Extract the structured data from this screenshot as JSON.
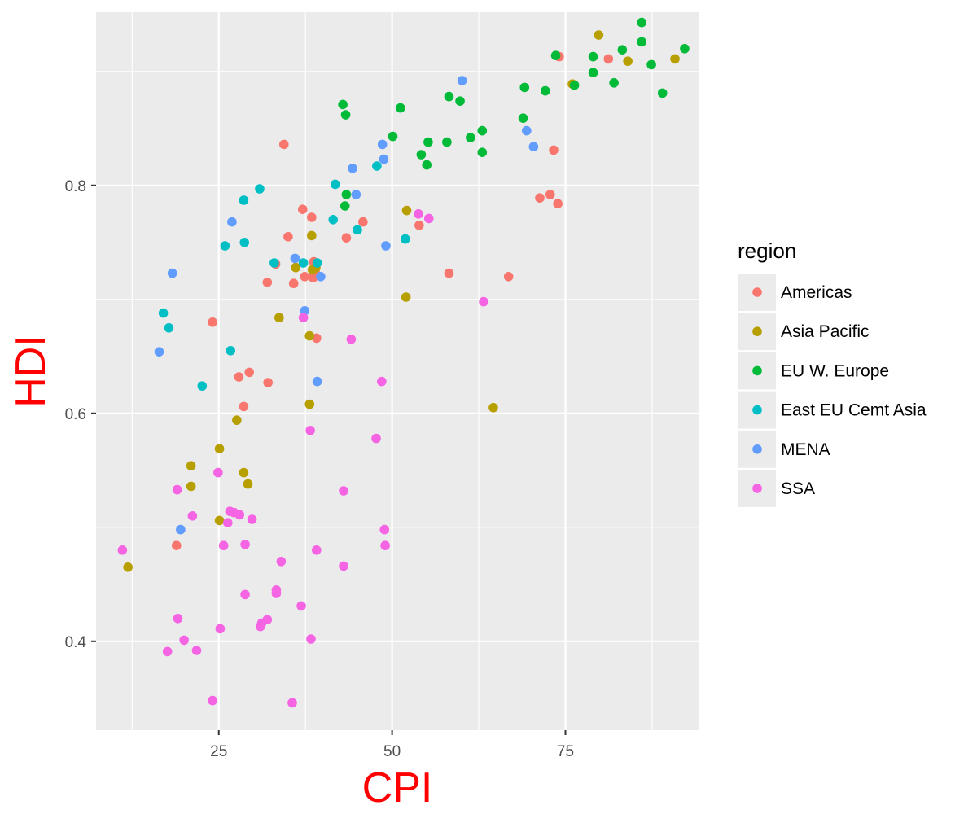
{
  "chart_data": {
    "type": "scatter",
    "xlabel": "CPI",
    "ylabel": "HDI",
    "xlim": [
      7.3,
      94.2
    ],
    "ylim": [
      0.322,
      0.952
    ],
    "x_ticks": [
      25,
      50,
      75
    ],
    "x_tick_labels": [
      "25",
      "50",
      "75"
    ],
    "y_ticks": [
      0.4,
      0.6,
      0.8
    ],
    "y_tick_labels": [
      "0.4",
      "0.6",
      "0.8"
    ],
    "grid": true,
    "legend": {
      "title": "region",
      "position": "right"
    },
    "colors": {
      "panel": "#EBEBEB",
      "grid": "#FFFFFF",
      "axis_title": "#FF0000",
      "tick_text": "#4D4D4D"
    },
    "series": [
      {
        "name": "Americas",
        "color": "#F8766D",
        "points": [
          [
            34.4,
            0.836
          ],
          [
            74.1,
            0.913
          ],
          [
            81.2,
            0.911
          ],
          [
            73.3,
            0.831
          ],
          [
            71.3,
            0.789
          ],
          [
            72.8,
            0.792
          ],
          [
            73.9,
            0.784
          ],
          [
            66.8,
            0.72
          ],
          [
            58.2,
            0.723
          ],
          [
            53.9,
            0.765
          ],
          [
            45.8,
            0.768
          ],
          [
            43.4,
            0.754
          ],
          [
            38.4,
            0.772
          ],
          [
            37.1,
            0.779
          ],
          [
            35.0,
            0.755
          ],
          [
            33.2,
            0.731
          ],
          [
            32.0,
            0.715
          ],
          [
            35.8,
            0.714
          ],
          [
            37.4,
            0.72
          ],
          [
            38.6,
            0.719
          ],
          [
            38.7,
            0.733
          ],
          [
            38.9,
            0.724
          ],
          [
            39.1,
            0.666
          ],
          [
            24.1,
            0.68
          ],
          [
            29.4,
            0.636
          ],
          [
            27.9,
            0.632
          ],
          [
            32.1,
            0.627
          ],
          [
            28.6,
            0.606
          ],
          [
            18.9,
            0.484
          ]
        ]
      },
      {
        "name": "Asia Pacific",
        "color": "#B79F00",
        "points": [
          [
            79.8,
            0.932
          ],
          [
            90.8,
            0.911
          ],
          [
            84.0,
            0.909
          ],
          [
            76.0,
            0.889
          ],
          [
            52.1,
            0.778
          ],
          [
            52.0,
            0.702
          ],
          [
            38.4,
            0.756
          ],
          [
            36.1,
            0.728
          ],
          [
            39.0,
            0.728
          ],
          [
            38.5,
            0.726
          ],
          [
            33.7,
            0.684
          ],
          [
            38.1,
            0.668
          ],
          [
            38.1,
            0.608
          ],
          [
            64.6,
            0.605
          ],
          [
            27.6,
            0.594
          ],
          [
            25.1,
            0.569
          ],
          [
            21.0,
            0.554
          ],
          [
            21.0,
            0.536
          ],
          [
            28.6,
            0.548
          ],
          [
            29.2,
            0.538
          ],
          [
            25.1,
            0.506
          ],
          [
            11.9,
            0.465
          ]
        ]
      },
      {
        "name": "EU W. Europe",
        "color": "#00BA38",
        "points": [
          [
            86.0,
            0.943
          ],
          [
            86.0,
            0.926
          ],
          [
            92.2,
            0.92
          ],
          [
            83.2,
            0.919
          ],
          [
            73.6,
            0.914
          ],
          [
            79.0,
            0.913
          ],
          [
            87.4,
            0.906
          ],
          [
            79.0,
            0.899
          ],
          [
            82.0,
            0.89
          ],
          [
            76.3,
            0.888
          ],
          [
            69.1,
            0.886
          ],
          [
            72.1,
            0.883
          ],
          [
            89.0,
            0.881
          ],
          [
            58.2,
            0.878
          ],
          [
            59.8,
            0.874
          ],
          [
            42.9,
            0.871
          ],
          [
            51.2,
            0.868
          ],
          [
            43.3,
            0.862
          ],
          [
            68.9,
            0.859
          ],
          [
            63.0,
            0.848
          ],
          [
            50.1,
            0.843
          ],
          [
            61.3,
            0.842
          ],
          [
            55.2,
            0.838
          ],
          [
            57.9,
            0.838
          ],
          [
            54.2,
            0.827
          ],
          [
            63.0,
            0.829
          ],
          [
            55.0,
            0.818
          ],
          [
            43.4,
            0.792
          ],
          [
            43.2,
            0.782
          ]
        ]
      },
      {
        "name": "East EU Cemt Asia",
        "color": "#00BFC4",
        "points": [
          [
            30.9,
            0.797
          ],
          [
            41.8,
            0.801
          ],
          [
            47.8,
            0.817
          ],
          [
            28.6,
            0.787
          ],
          [
            41.5,
            0.77
          ],
          [
            45.0,
            0.761
          ],
          [
            51.9,
            0.753
          ],
          [
            28.7,
            0.75
          ],
          [
            25.9,
            0.747
          ],
          [
            33.0,
            0.732
          ],
          [
            37.2,
            0.732
          ],
          [
            39.2,
            0.732
          ],
          [
            17.0,
            0.688
          ],
          [
            17.8,
            0.675
          ],
          [
            26.7,
            0.655
          ],
          [
            22.6,
            0.624
          ]
        ]
      },
      {
        "name": "MENA",
        "color": "#619CFF",
        "points": [
          [
            60.1,
            0.892
          ],
          [
            48.6,
            0.836
          ],
          [
            69.4,
            0.848
          ],
          [
            70.4,
            0.834
          ],
          [
            48.8,
            0.823
          ],
          [
            44.3,
            0.815
          ],
          [
            44.8,
            0.792
          ],
          [
            26.9,
            0.768
          ],
          [
            49.1,
            0.747
          ],
          [
            36.0,
            0.736
          ],
          [
            39.7,
            0.72
          ],
          [
            18.3,
            0.723
          ],
          [
            37.4,
            0.69
          ],
          [
            16.4,
            0.654
          ],
          [
            39.2,
            0.628
          ],
          [
            19.5,
            0.498
          ]
        ]
      },
      {
        "name": "SSA",
        "color": "#F564E3",
        "points": [
          [
            53.8,
            0.775
          ],
          [
            55.3,
            0.771
          ],
          [
            63.2,
            0.698
          ],
          [
            37.2,
            0.684
          ],
          [
            44.1,
            0.665
          ],
          [
            48.5,
            0.628
          ],
          [
            38.2,
            0.585
          ],
          [
            47.7,
            0.578
          ],
          [
            24.9,
            0.548
          ],
          [
            19.0,
            0.533
          ],
          [
            43.0,
            0.532
          ],
          [
            21.2,
            0.51
          ],
          [
            26.6,
            0.514
          ],
          [
            27.2,
            0.513
          ],
          [
            28.0,
            0.511
          ],
          [
            29.8,
            0.507
          ],
          [
            26.3,
            0.504
          ],
          [
            48.9,
            0.498
          ],
          [
            11.1,
            0.48
          ],
          [
            25.7,
            0.484
          ],
          [
            28.8,
            0.485
          ],
          [
            49.0,
            0.484
          ],
          [
            39.1,
            0.48
          ],
          [
            34.0,
            0.47
          ],
          [
            43.0,
            0.466
          ],
          [
            33.3,
            0.445
          ],
          [
            33.3,
            0.442
          ],
          [
            28.8,
            0.441
          ],
          [
            36.9,
            0.431
          ],
          [
            19.1,
            0.42
          ],
          [
            32.0,
            0.419
          ],
          [
            31.2,
            0.416
          ],
          [
            31.0,
            0.413
          ],
          [
            25.2,
            0.411
          ],
          [
            20.0,
            0.401
          ],
          [
            38.3,
            0.402
          ],
          [
            17.6,
            0.391
          ],
          [
            21.8,
            0.392
          ],
          [
            24.1,
            0.348
          ],
          [
            35.6,
            0.346
          ]
        ]
      }
    ]
  }
}
